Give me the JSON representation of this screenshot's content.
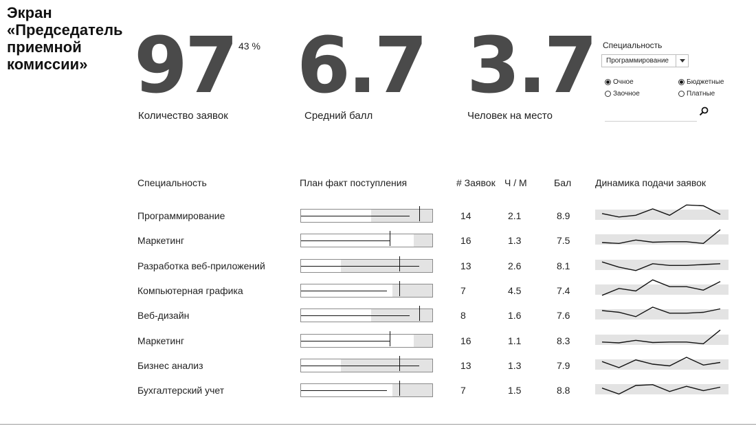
{
  "screen_title": "Экран «Председатель приемной комиссии»",
  "kpis": {
    "applications": {
      "value": "97",
      "label": "Количество заявок",
      "percent": "43 %"
    },
    "avg_score": {
      "value": "6.7",
      "label": "Средний балл"
    },
    "per_place": {
      "value": "3.7",
      "label": "Человек на место"
    }
  },
  "filters": {
    "title": "Специальность",
    "selected_specialty": "Программирование",
    "study_form": [
      {
        "label": "Очное",
        "checked": true
      },
      {
        "label": "Заочное",
        "checked": false
      }
    ],
    "funding": [
      {
        "label": "Бюджетные",
        "checked": true
      },
      {
        "label": "Платные",
        "checked": false
      }
    ],
    "search_value": ""
  },
  "table": {
    "headers": {
      "specialty": "Специальность",
      "plan_fact": "План факт поступления",
      "applications": "# Заявок",
      "per_place": "Ч / М",
      "score": "Бал",
      "dynamics": "Динамика подачи заявок"
    },
    "rows": [
      {
        "specialty": "Программирование",
        "applications": "14",
        "per_place": "2.1",
        "score": "8.9",
        "plan_fact": {
          "range": 0.53,
          "actual": 0.82,
          "target": 0.89
        },
        "trend": [
          0.45,
          0.25,
          0.35,
          0.72,
          0.35,
          0.95,
          0.9,
          0.4
        ]
      },
      {
        "specialty": "Маркетинг",
        "applications": "16",
        "per_place": "1.3",
        "score": "7.5",
        "plan_fact": {
          "range": 0.85,
          "actual": 0.67,
          "target": 0.67
        },
        "trend": [
          0.2,
          0.15,
          0.35,
          0.22,
          0.25,
          0.25,
          0.15,
          0.95
        ]
      },
      {
        "specialty": "Разработка веб-приложений",
        "applications": "13",
        "per_place": "2.6",
        "score": "8.1",
        "plan_fact": {
          "range": 0.3,
          "actual": 0.89,
          "target": 0.74
        },
        "trend": [
          0.55,
          0.25,
          0.05,
          0.45,
          0.35,
          0.35,
          0.4,
          0.45
        ]
      },
      {
        "specialty": "Компьютерная графика",
        "applications": "7",
        "per_place": "4.5",
        "score": "7.4",
        "plan_fact": {
          "range": 0.69,
          "actual": 0.65,
          "target": 0.74
        },
        "trend": [
          0.05,
          0.45,
          0.3,
          0.95,
          0.55,
          0.55,
          0.35,
          0.85
        ]
      },
      {
        "specialty": "Веб-дизайн",
        "applications": "8",
        "per_place": "1.6",
        "score": "7.6",
        "plan_fact": {
          "range": 0.53,
          "actual": 0.82,
          "target": 0.89
        },
        "trend": [
          0.6,
          0.5,
          0.25,
          0.8,
          0.45,
          0.45,
          0.5,
          0.7
        ]
      },
      {
        "specialty": "Маркетинг",
        "applications": "16",
        "per_place": "1.1",
        "score": "8.3",
        "plan_fact": {
          "range": 0.85,
          "actual": 0.67,
          "target": 0.67
        },
        "trend": [
          0.25,
          0.2,
          0.35,
          0.22,
          0.25,
          0.25,
          0.15,
          0.95
        ]
      },
      {
        "specialty": "Бизнес анализ",
        "applications": "13",
        "per_place": "1.3",
        "score": "7.9",
        "plan_fact": {
          "range": 0.3,
          "actual": 0.89,
          "target": 0.74
        },
        "trend": [
          0.55,
          0.2,
          0.65,
          0.4,
          0.3,
          0.8,
          0.35,
          0.5
        ]
      },
      {
        "specialty": "Бухгалтерский учет",
        "applications": "7",
        "per_place": "1.5",
        "score": "8.8",
        "plan_fact": {
          "range": 0.69,
          "actual": 0.65,
          "target": 0.74
        },
        "trend": [
          0.45,
          0.1,
          0.6,
          0.65,
          0.25,
          0.55,
          0.3,
          0.5
        ]
      }
    ]
  }
}
